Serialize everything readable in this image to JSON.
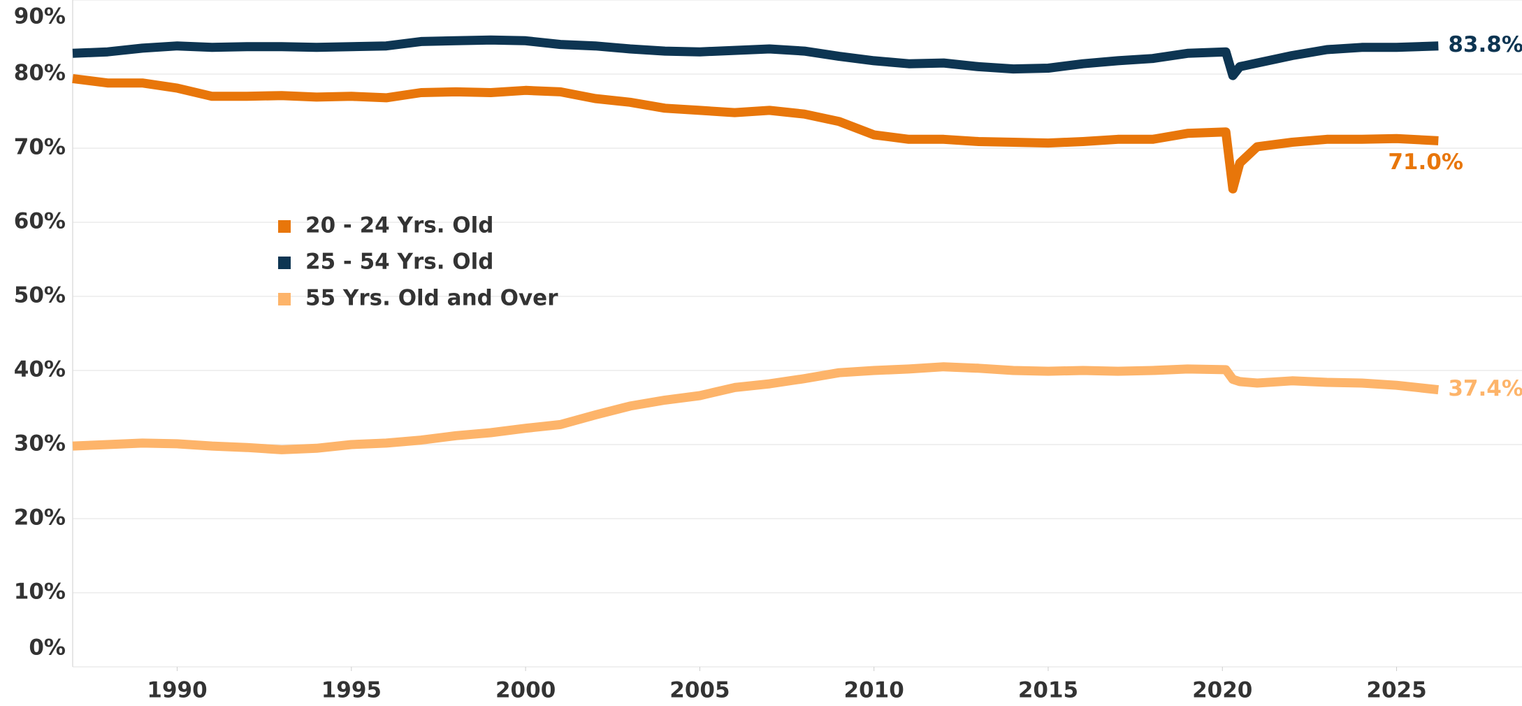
{
  "chart_data": {
    "type": "line",
    "x": [
      1987,
      1988,
      1989,
      1990,
      1991,
      1992,
      1993,
      1994,
      1995,
      1996,
      1997,
      1998,
      1999,
      2000,
      2001,
      2002,
      2003,
      2004,
      2005,
      2006,
      2007,
      2008,
      2009,
      2010,
      2011,
      2012,
      2013,
      2014,
      2015,
      2016,
      2017,
      2018,
      2019,
      2020.1,
      2020.3,
      2020.5,
      2021,
      2022,
      2023,
      2024,
      2025,
      2026.2
    ],
    "series": [
      {
        "name": "20 - 24 Yrs. Old",
        "color": "#e8760a",
        "last_label": "71.0%",
        "values": [
          79.4,
          78.8,
          78.8,
          78.1,
          77.0,
          77.0,
          77.1,
          76.9,
          77.0,
          76.8,
          77.5,
          77.6,
          77.5,
          77.8,
          77.6,
          76.7,
          76.2,
          75.4,
          75.1,
          74.8,
          75.1,
          74.6,
          73.6,
          71.8,
          71.2,
          71.2,
          70.9,
          70.8,
          70.7,
          70.9,
          71.2,
          71.2,
          72.0,
          72.2,
          64.5,
          68.0,
          70.2,
          70.8,
          71.2,
          71.2,
          71.3,
          71.0
        ]
      },
      {
        "name": "25 - 54 Yrs. Old",
        "color": "#0d3552",
        "last_label": "83.8%",
        "values": [
          82.8,
          83.0,
          83.5,
          83.8,
          83.6,
          83.7,
          83.7,
          83.6,
          83.7,
          83.8,
          84.4,
          84.5,
          84.6,
          84.5,
          84.0,
          83.8,
          83.4,
          83.1,
          83.0,
          83.2,
          83.4,
          83.1,
          82.4,
          81.8,
          81.4,
          81.5,
          81.0,
          80.7,
          80.8,
          81.4,
          81.8,
          82.1,
          82.8,
          83.0,
          79.8,
          81.0,
          81.5,
          82.5,
          83.3,
          83.6,
          83.6,
          83.8
        ]
      },
      {
        "name": "55 Yrs. Old and Over",
        "color": "#fdb46a",
        "last_label": "37.4%",
        "values": [
          29.8,
          30.0,
          30.2,
          30.1,
          29.8,
          29.6,
          29.3,
          29.5,
          30.0,
          30.2,
          30.6,
          31.2,
          31.6,
          32.2,
          32.7,
          34.0,
          35.2,
          36.0,
          36.6,
          37.7,
          38.2,
          38.9,
          39.7,
          40.0,
          40.2,
          40.5,
          40.3,
          40.0,
          39.9,
          40.0,
          39.9,
          40.0,
          40.2,
          40.1,
          38.8,
          38.5,
          38.3,
          38.6,
          38.4,
          38.3,
          38.0,
          37.4
        ]
      }
    ],
    "xlim": [
      1987,
      2028.6
    ],
    "xticks": [
      1990,
      1995,
      2000,
      2005,
      2010,
      2015,
      2020,
      2025
    ],
    "ylim": [
      0,
      90
    ],
    "yticks": [
      {
        "value": 0,
        "label": "0%"
      },
      {
        "value": 10,
        "label": "10%"
      },
      {
        "value": 20,
        "label": "20%"
      },
      {
        "value": 30,
        "label": "30%"
      },
      {
        "value": 40,
        "label": "40%"
      },
      {
        "value": 50,
        "label": "50%"
      },
      {
        "value": 60,
        "label": "60%"
      },
      {
        "value": 70,
        "label": "70%"
      },
      {
        "value": 80,
        "label": "80%"
      },
      {
        "value": 90,
        "label": "90%"
      }
    ],
    "grid": true,
    "legend": "upper left"
  }
}
